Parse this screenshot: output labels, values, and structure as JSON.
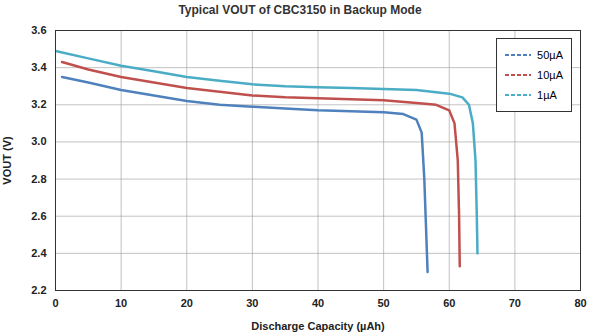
{
  "chart_data": {
    "type": "line",
    "title": "Typical VOUT of CBC3150 in Backup Mode",
    "x_label": "Discharge Capacity (µAh)",
    "y_label": "VOUT (V)",
    "xlim": [
      0,
      80
    ],
    "xticks": [
      0,
      10,
      20,
      30,
      40,
      50,
      60,
      70,
      80
    ],
    "ylim": [
      2.2,
      3.6
    ],
    "yticks": [
      2.2,
      2.4,
      2.6,
      2.8,
      {
        "value": 3,
        "label": "3.0"
      },
      3.2,
      3.4,
      3.6
    ],
    "grid": true,
    "legend": "upper right",
    "series": [
      {
        "name": "50µA",
        "color": "#4f81bd",
        "x": [
          1,
          5,
          10,
          15,
          20,
          25,
          30,
          35,
          40,
          45,
          50,
          53,
          55,
          55.8,
          56.2,
          56.5,
          56.7
        ],
        "values": [
          3.35,
          3.32,
          3.28,
          3.25,
          3.22,
          3.2,
          3.19,
          3.18,
          3.17,
          3.165,
          3.16,
          3.15,
          3.12,
          3.05,
          2.8,
          2.5,
          2.3
        ]
      },
      {
        "name": "10µA",
        "color": "#c0504d",
        "x": [
          1,
          5,
          10,
          15,
          20,
          25,
          30,
          35,
          40,
          45,
          50,
          55,
          58,
          60,
          60.8,
          61.3,
          61.5,
          61.6
        ],
        "values": [
          3.43,
          3.39,
          3.35,
          3.32,
          3.29,
          3.27,
          3.25,
          3.24,
          3.235,
          3.23,
          3.225,
          3.21,
          3.2,
          3.17,
          3.1,
          2.9,
          2.6,
          2.33
        ]
      },
      {
        "name": "1µA",
        "color": "#4bacc6",
        "x": [
          0,
          5,
          10,
          15,
          20,
          25,
          30,
          35,
          40,
          45,
          50,
          55,
          60,
          62,
          63,
          63.6,
          64,
          64.2,
          64.3
        ],
        "values": [
          3.49,
          3.45,
          3.41,
          3.38,
          3.35,
          3.33,
          3.31,
          3.3,
          3.295,
          3.29,
          3.285,
          3.28,
          3.26,
          3.24,
          3.2,
          3.1,
          2.9,
          2.6,
          2.4
        ]
      }
    ]
  }
}
